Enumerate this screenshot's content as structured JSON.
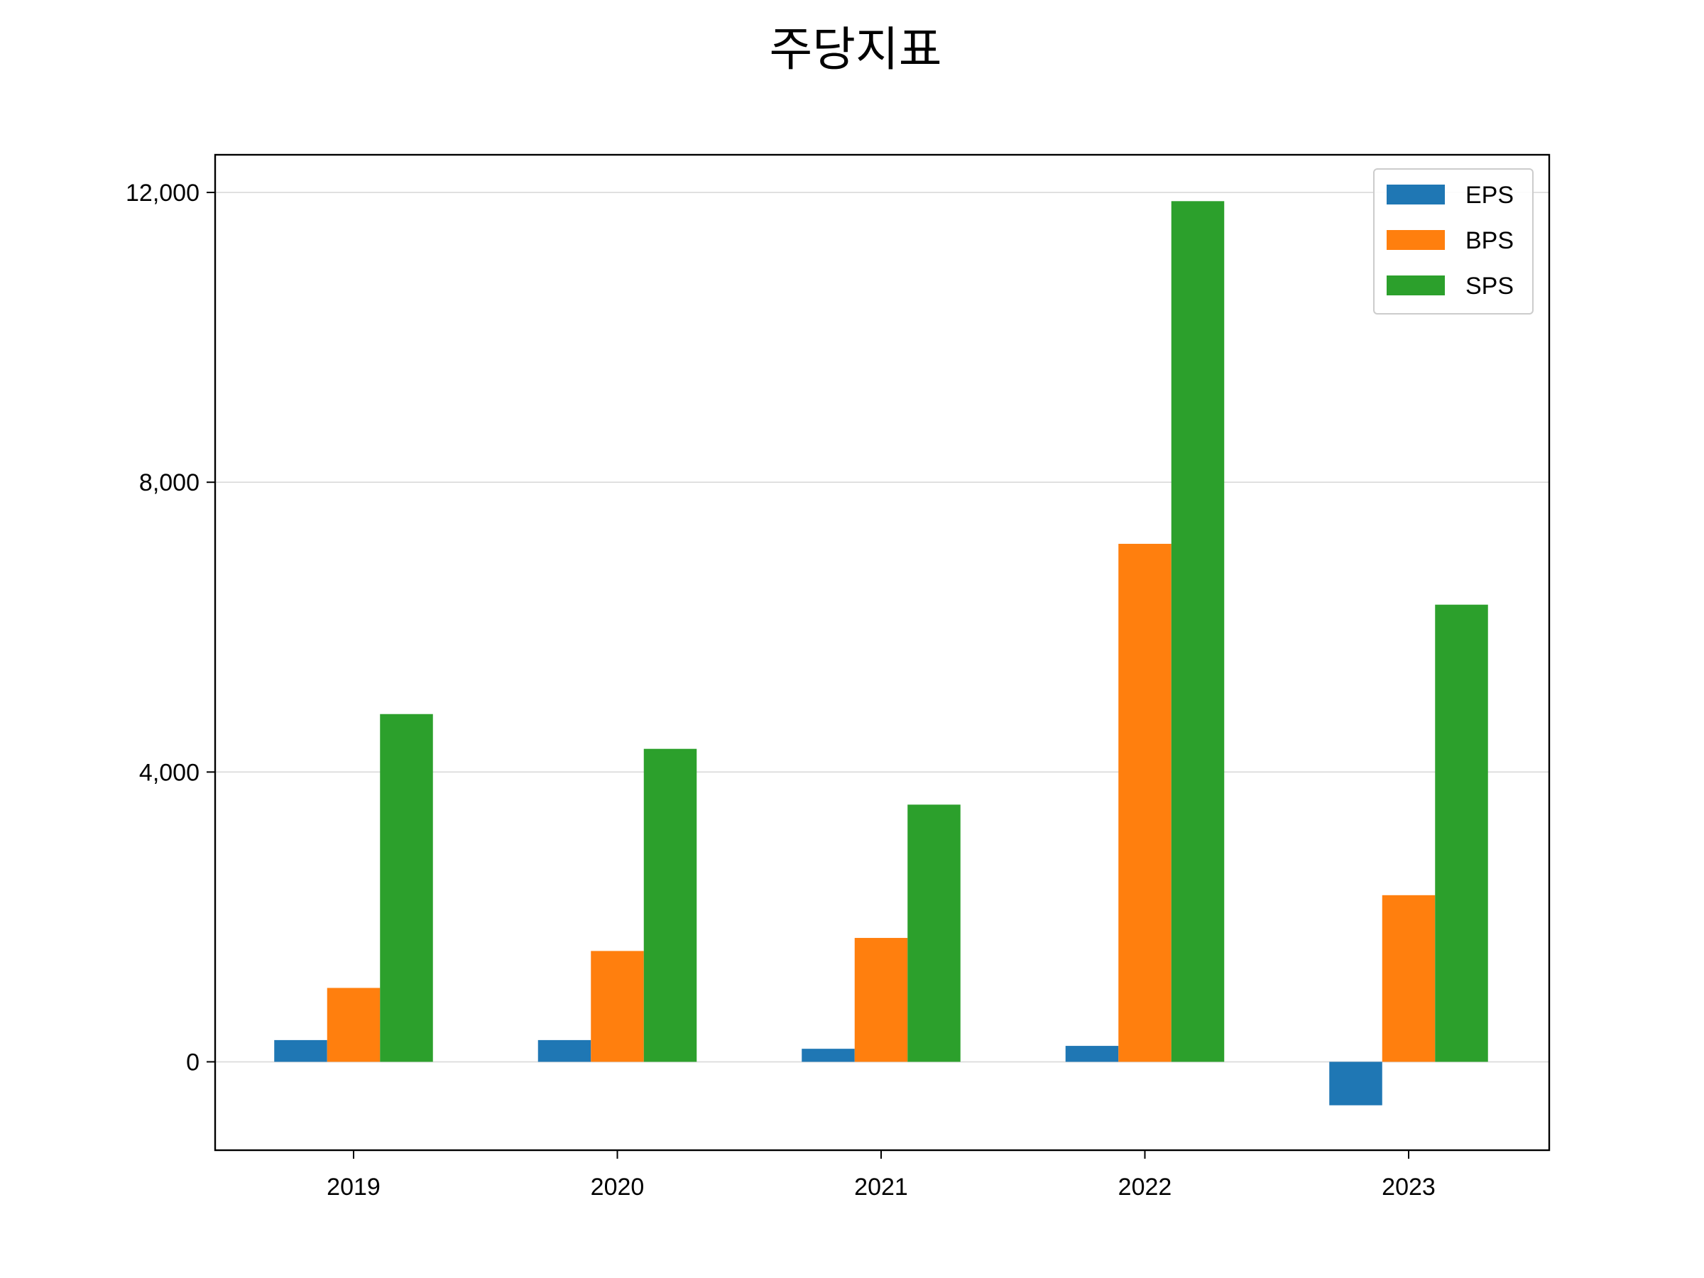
{
  "chart_data": {
    "type": "bar",
    "title": "주당지표",
    "xlabel": "",
    "ylabel": "",
    "categories": [
      "2019",
      "2020",
      "2021",
      "2022",
      "2023"
    ],
    "series": [
      {
        "name": "EPS",
        "color": "#1f77b4",
        "values": [
          300,
          300,
          180,
          220,
          -600
        ]
      },
      {
        "name": "BPS",
        "color": "#ff7f0e",
        "values": [
          1020,
          1530,
          1710,
          7150,
          2300
        ]
      },
      {
        "name": "SPS",
        "color": "#2ca02c",
        "values": [
          4800,
          4320,
          3550,
          11880,
          6310
        ]
      }
    ],
    "ylim": [
      -1220,
      12520
    ],
    "yticks": [
      0,
      4000,
      8000,
      12000
    ],
    "ytick_labels": [
      "0",
      "4,000",
      "8,000",
      "12,000"
    ],
    "grid": "y",
    "legend_position": "top-right"
  }
}
